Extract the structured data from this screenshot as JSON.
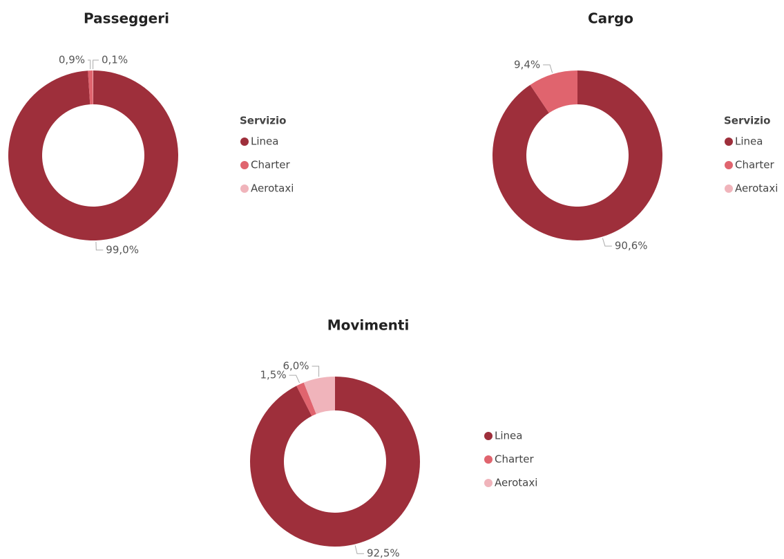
{
  "chart_data": [
    {
      "type": "donut",
      "title": "Passeggeri",
      "legend_title": "Servizio",
      "categories": [
        "Linea",
        "Charter",
        "Aerotaxi"
      ],
      "values": [
        99.0,
        0.9,
        0.1
      ],
      "value_labels": [
        "99,0%",
        "0,9%",
        "0,1%"
      ],
      "colors": [
        "#9e2f3b",
        "#e0646e",
        "#f0b4bb"
      ]
    },
    {
      "type": "donut",
      "title": "Cargo",
      "legend_title": "Servizio",
      "categories": [
        "Linea",
        "Charter",
        "Aerotaxi"
      ],
      "values": [
        90.6,
        9.4,
        0
      ],
      "value_labels": [
        "90,6%",
        "9,4%",
        null
      ],
      "colors": [
        "#9e2f3b",
        "#e0646e",
        "#f0b4bb"
      ]
    },
    {
      "type": "donut",
      "title": "Movimenti",
      "categories": [
        "Linea",
        "Charter",
        "Aerotaxi"
      ],
      "values": [
        92.5,
        1.5,
        6.0
      ],
      "value_labels": [
        "92,5%",
        "1,5%",
        "6,0%"
      ],
      "colors": [
        "#9e2f3b",
        "#e0646e",
        "#f0b4bb"
      ]
    }
  ]
}
